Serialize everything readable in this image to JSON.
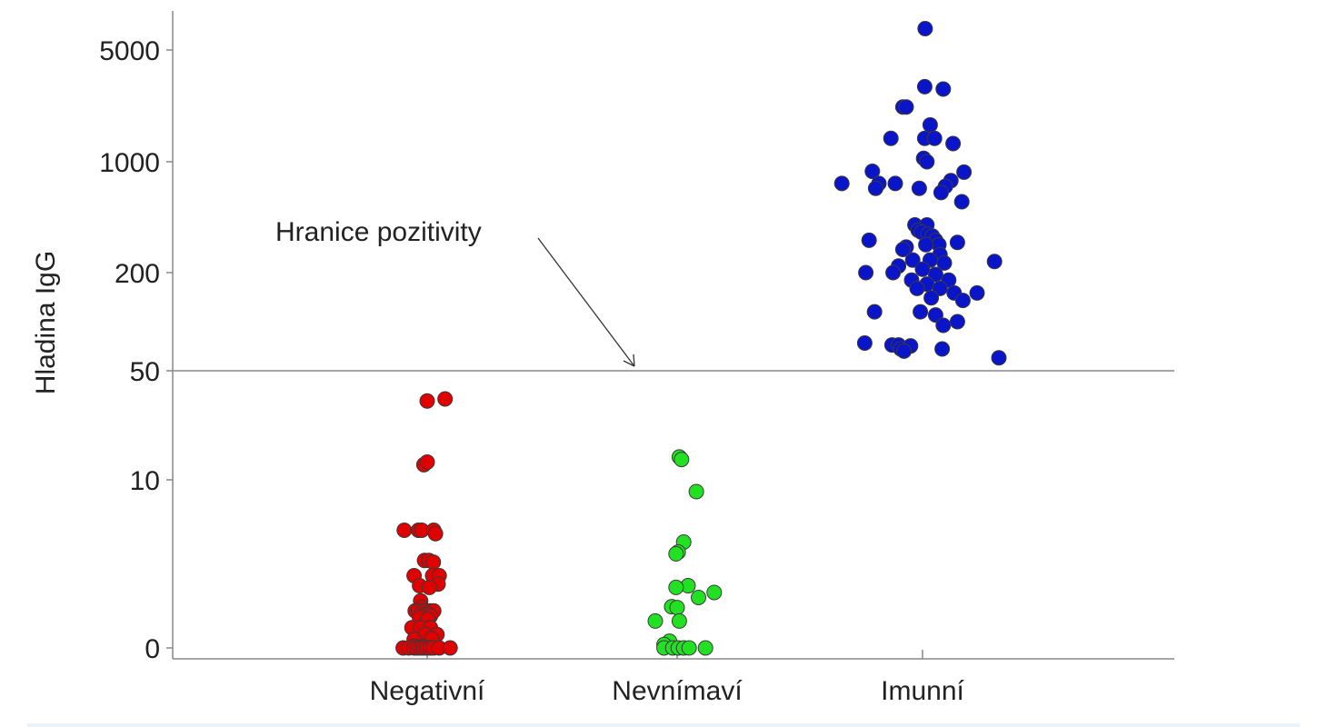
{
  "chart_data": {
    "type": "scatter",
    "title": "",
    "xlabel": "",
    "ylabel": "Hladina IgG",
    "categories": [
      "Negativní",
      "Nevnímaví",
      "Imunní"
    ],
    "yticks": [
      0,
      10,
      50,
      200,
      1000,
      5000
    ],
    "reference_line": {
      "value": 50,
      "label": "Hranice pozitivity"
    },
    "grid": false,
    "series": [
      {
        "category": "Negativní",
        "color": "#e00000",
        "points": [
          {
            "dx": 0.0,
            "y": 32
          },
          {
            "dx": 0.82,
            "y": 33
          },
          {
            "dx": -0.15,
            "y": 12.5
          },
          {
            "dx": 0.0,
            "y": 13
          },
          {
            "dx": -1.05,
            "y": 7
          },
          {
            "dx": -0.4,
            "y": 7
          },
          {
            "dx": -0.25,
            "y": 7
          },
          {
            "dx": 0.3,
            "y": 7
          },
          {
            "dx": 0.38,
            "y": 6.8
          },
          {
            "dx": -0.12,
            "y": 5.2
          },
          {
            "dx": 0.08,
            "y": 5.2
          },
          {
            "dx": 0.28,
            "y": 5.1
          },
          {
            "dx": -0.6,
            "y": 4.3
          },
          {
            "dx": 0.25,
            "y": 4.3
          },
          {
            "dx": 0.55,
            "y": 4.3
          },
          {
            "dx": 0.5,
            "y": 3.8
          },
          {
            "dx": -0.35,
            "y": 3.7
          },
          {
            "dx": 0.1,
            "y": 3.6
          },
          {
            "dx": -0.3,
            "y": 2.8
          },
          {
            "dx": -0.25,
            "y": 2.4
          },
          {
            "dx": -0.55,
            "y": 2.2
          },
          {
            "dx": -0.4,
            "y": 2.2
          },
          {
            "dx": -0.2,
            "y": 2.2
          },
          {
            "dx": -0.05,
            "y": 2.2
          },
          {
            "dx": 0.15,
            "y": 2.2
          },
          {
            "dx": 0.3,
            "y": 2.2
          },
          {
            "dx": -0.05,
            "y": 2.0
          },
          {
            "dx": 0.05,
            "y": 2.0
          },
          {
            "dx": 0.15,
            "y": 1.9
          },
          {
            "dx": -0.35,
            "y": 1.8
          },
          {
            "dx": 0.02,
            "y": 1.7
          },
          {
            "dx": -0.7,
            "y": 1.2
          },
          {
            "dx": -0.3,
            "y": 1.2
          },
          {
            "dx": 0.15,
            "y": 1.2
          },
          {
            "dx": -0.1,
            "y": 0.8
          },
          {
            "dx": 0.45,
            "y": 0.8
          },
          {
            "dx": 0.2,
            "y": 0.55
          },
          {
            "dx": -0.6,
            "y": 0.5
          },
          {
            "dx": -0.6,
            "y": 0.1
          },
          {
            "dx": -0.2,
            "y": 0.1
          },
          {
            "dx": -1.1,
            "y": 0
          },
          {
            "dx": -0.85,
            "y": 0
          },
          {
            "dx": -0.6,
            "y": 0
          },
          {
            "dx": -0.45,
            "y": 0
          },
          {
            "dx": -0.3,
            "y": 0
          },
          {
            "dx": -0.15,
            "y": 0
          },
          {
            "dx": 0.0,
            "y": 0
          },
          {
            "dx": 0.15,
            "y": 0
          },
          {
            "dx": 0.3,
            "y": 0
          },
          {
            "dx": 0.55,
            "y": 0
          },
          {
            "dx": 1.05,
            "y": 0
          }
        ]
      },
      {
        "category": "Nevnímaví",
        "color": "#22e022",
        "points": [
          {
            "dx": 0.1,
            "y": 14
          },
          {
            "dx": 0.2,
            "y": 13.5
          },
          {
            "dx": 0.88,
            "y": 9.3
          },
          {
            "dx": 0.3,
            "y": 6.3
          },
          {
            "dx": 0.05,
            "y": 5.7
          },
          {
            "dx": -0.05,
            "y": 5.6
          },
          {
            "dx": 0.5,
            "y": 3.7
          },
          {
            "dx": -0.05,
            "y": 3.6
          },
          {
            "dx": 1.7,
            "y": 3.3
          },
          {
            "dx": 0.98,
            "y": 3.0
          },
          {
            "dx": -0.25,
            "y": 2.45
          },
          {
            "dx": 0.0,
            "y": 2.4
          },
          {
            "dx": -1.0,
            "y": 1.6
          },
          {
            "dx": 0.1,
            "y": 1.6
          },
          {
            "dx": -0.35,
            "y": 0.4
          },
          {
            "dx": -0.6,
            "y": 0.2
          },
          {
            "dx": -0.6,
            "y": 0
          },
          {
            "dx": -0.2,
            "y": 0
          },
          {
            "dx": 0.05,
            "y": 0
          },
          {
            "dx": 0.3,
            "y": 0
          },
          {
            "dx": 0.55,
            "y": 0
          },
          {
            "dx": 1.3,
            "y": 0
          }
        ]
      },
      {
        "category": "Imunní",
        "color": "#0a14c8",
        "points": [
          {
            "dx": 0.12,
            "y": 6800
          },
          {
            "dx": 0.1,
            "y": 2950
          },
          {
            "dx": 0.95,
            "y": 2850
          },
          {
            "dx": -0.9,
            "y": 2200
          },
          {
            "dx": -0.75,
            "y": 2200
          },
          {
            "dx": 0.35,
            "y": 1700
          },
          {
            "dx": -1.45,
            "y": 1400
          },
          {
            "dx": 0.1,
            "y": 1400
          },
          {
            "dx": 0.55,
            "y": 1400
          },
          {
            "dx": 1.4,
            "y": 1300
          },
          {
            "dx": 0.05,
            "y": 1050
          },
          {
            "dx": 0.2,
            "y": 1000
          },
          {
            "dx": -2.3,
            "y": 870
          },
          {
            "dx": 1.9,
            "y": 860
          },
          {
            "dx": 1.3,
            "y": 760
          },
          {
            "dx": -3.7,
            "y": 730
          },
          {
            "dx": -2.0,
            "y": 730
          },
          {
            "dx": -1.25,
            "y": 730
          },
          {
            "dx": 1.05,
            "y": 700
          },
          {
            "dx": -2.15,
            "y": 680
          },
          {
            "dx": -0.15,
            "y": 680
          },
          {
            "dx": 0.85,
            "y": 640
          },
          {
            "dx": 1.8,
            "y": 560
          },
          {
            "dx": -0.35,
            "y": 400
          },
          {
            "dx": 0.2,
            "y": 400
          },
          {
            "dx": -0.2,
            "y": 370
          },
          {
            "dx": -0.05,
            "y": 360
          },
          {
            "dx": 0.25,
            "y": 350
          },
          {
            "dx": 0.45,
            "y": 340
          },
          {
            "dx": -2.45,
            "y": 320
          },
          {
            "dx": 0.6,
            "y": 320
          },
          {
            "dx": 0.75,
            "y": 300
          },
          {
            "dx": 1.6,
            "y": 310
          },
          {
            "dx": -0.75,
            "y": 290
          },
          {
            "dx": 0.15,
            "y": 300
          },
          {
            "dx": -0.9,
            "y": 280
          },
          {
            "dx": 0.8,
            "y": 260
          },
          {
            "dx": -0.45,
            "y": 240
          },
          {
            "dx": 0.35,
            "y": 240
          },
          {
            "dx": 3.3,
            "y": 235
          },
          {
            "dx": 1.0,
            "y": 230
          },
          {
            "dx": -1.1,
            "y": 220
          },
          {
            "dx": 0.0,
            "y": 210
          },
          {
            "dx": -2.6,
            "y": 200
          },
          {
            "dx": -1.35,
            "y": 200
          },
          {
            "dx": 0.6,
            "y": 195
          },
          {
            "dx": 1.2,
            "y": 180
          },
          {
            "dx": -0.5,
            "y": 180
          },
          {
            "dx": 0.2,
            "y": 170
          },
          {
            "dx": 0.8,
            "y": 160
          },
          {
            "dx": -0.25,
            "y": 160
          },
          {
            "dx": 1.45,
            "y": 150
          },
          {
            "dx": 2.5,
            "y": 150
          },
          {
            "dx": 0.4,
            "y": 140
          },
          {
            "dx": 1.85,
            "y": 135
          },
          {
            "dx": -2.2,
            "y": 115
          },
          {
            "dx": -0.1,
            "y": 115
          },
          {
            "dx": 0.6,
            "y": 110
          },
          {
            "dx": 1.6,
            "y": 100
          },
          {
            "dx": 0.95,
            "y": 95
          },
          {
            "dx": -2.65,
            "y": 74
          },
          {
            "dx": -1.4,
            "y": 72
          },
          {
            "dx": -1.1,
            "y": 72
          },
          {
            "dx": -0.55,
            "y": 71
          },
          {
            "dx": -1.0,
            "y": 68
          },
          {
            "dx": -0.85,
            "y": 66
          },
          {
            "dx": 0.9,
            "y": 68
          },
          {
            "dx": 3.5,
            "y": 60
          }
        ]
      }
    ]
  },
  "ylabel_text": "Hladina IgG",
  "annotation_text": "Hranice pozitivity"
}
